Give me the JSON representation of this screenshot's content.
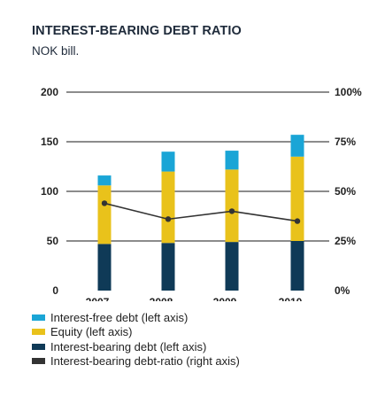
{
  "title": "INTEREST-BEARING DEBT RATIO",
  "subtitle": "NOK bill.",
  "colors": {
    "interest_free": "#1aa5d6",
    "equity": "#e9c21b",
    "interest_bearing": "#0f3a57",
    "ratio_line": "#333333",
    "grid": "#1a1a1a"
  },
  "chart_data": {
    "type": "bar",
    "stacked": true,
    "categories": [
      "2007",
      "2008",
      "2009",
      "2010"
    ],
    "series": [
      {
        "name": "Interest-bearing debt (left axis)",
        "axis": "left",
        "values": [
          47,
          48,
          49,
          50
        ]
      },
      {
        "name": "Equity (left axis)",
        "axis": "left",
        "values": [
          59,
          72,
          73,
          85
        ]
      },
      {
        "name": "Interest-free debt (left axis)",
        "axis": "left",
        "values": [
          10,
          20,
          19,
          22
        ]
      },
      {
        "name": "Interest-bearing debt-ratio (right axis)",
        "axis": "right",
        "type": "line",
        "values": [
          44,
          36,
          40,
          35
        ]
      }
    ],
    "left_axis": {
      "ticks": [
        "0",
        "50",
        "100",
        "150",
        "200"
      ],
      "ylim": [
        0,
        200
      ]
    },
    "right_axis": {
      "ticks": [
        "0%",
        "25%",
        "50%",
        "75%",
        "100%"
      ],
      "ylim": [
        0,
        100
      ]
    },
    "grid": true,
    "legend_position": "bottom"
  },
  "legend": [
    {
      "label": "Interest-free debt (left axis)",
      "color": "#1aa5d6"
    },
    {
      "label": "Equity (left axis)",
      "color": "#e9c21b"
    },
    {
      "label": "Interest-bearing debt (left axis)",
      "color": "#0f3a57"
    },
    {
      "label": "Interest-bearing debt-ratio (right axis)",
      "color": "#333333"
    }
  ]
}
